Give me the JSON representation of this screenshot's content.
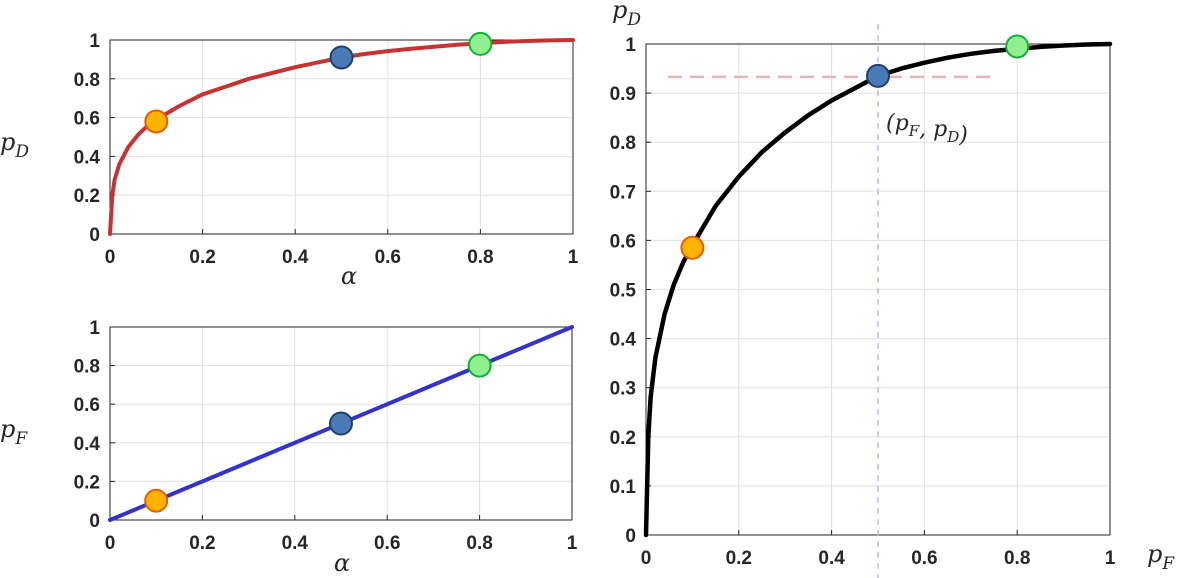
{
  "colors": {
    "red_curve": "#c83232",
    "blue_line": "#3333cc",
    "black_curve": "#000000",
    "orange_marker": "#ffb300",
    "orange_edge": "#e06000",
    "blue_marker": "#4a7ab8",
    "blue_edge": "#20406a",
    "green_marker": "#90f090",
    "green_edge": "#10b030",
    "grid": "#e0e0e0",
    "axis_box": "#262626",
    "hguide": "#e8b4b4",
    "vguide": "#a8c4e8"
  },
  "chart_data": [
    {
      "type": "line",
      "xlabel": "α",
      "ylabel": "p_D",
      "xlim": [
        0,
        1
      ],
      "ylim": [
        0,
        1
      ],
      "grid": true,
      "xticks": [
        "0",
        "0.2",
        "0.4",
        "0.6",
        "0.8",
        "1"
      ],
      "yticks": [
        "0",
        "0.2",
        "0.4",
        "0.6",
        "0.8",
        "1"
      ],
      "series": [
        {
          "x": [
            0,
            0.005,
            0.01,
            0.02,
            0.04,
            0.06,
            0.08,
            0.1,
            0.15,
            0.2,
            0.25,
            0.3,
            0.35,
            0.4,
            0.45,
            0.5,
            0.55,
            0.6,
            0.65,
            0.7,
            0.75,
            0.8,
            0.85,
            0.9,
            0.95,
            1
          ],
          "y": [
            0,
            0.2,
            0.28,
            0.36,
            0.45,
            0.51,
            0.555,
            0.59,
            0.66,
            0.72,
            0.76,
            0.8,
            0.83,
            0.86,
            0.885,
            0.91,
            0.928,
            0.943,
            0.955,
            0.965,
            0.975,
            0.983,
            0.99,
            0.995,
            0.998,
            1
          ]
        }
      ],
      "points": [
        {
          "x": 0.1,
          "y": 0.58
        },
        {
          "x": 0.5,
          "y": 0.91
        },
        {
          "x": 0.8,
          "y": 0.98
        }
      ]
    },
    {
      "type": "line",
      "xlabel": "α",
      "ylabel": "p_F",
      "xlim": [
        0,
        1
      ],
      "ylim": [
        0,
        1
      ],
      "grid": true,
      "xticks": [
        "0",
        "0.2",
        "0.4",
        "0.6",
        "0.8",
        "1"
      ],
      "yticks": [
        "0",
        "0.2",
        "0.4",
        "0.6",
        "0.8",
        "1"
      ],
      "series": [
        {
          "x": [
            0,
            1
          ],
          "y": [
            0,
            1
          ]
        }
      ],
      "points": [
        {
          "x": 0.1,
          "y": 0.1
        },
        {
          "x": 0.5,
          "y": 0.5
        },
        {
          "x": 0.8,
          "y": 0.8
        }
      ]
    },
    {
      "type": "line",
      "xlabel": "p_F",
      "ylabel": "p_D",
      "xlim": [
        0,
        1
      ],
      "ylim": [
        0,
        1
      ],
      "grid": true,
      "xticks": [
        "0",
        "0.2",
        "0.4",
        "0.6",
        "0.8",
        "1"
      ],
      "yticks": [
        "0",
        "0.1",
        "0.2",
        "0.3",
        "0.4",
        "0.5",
        "0.6",
        "0.7",
        "0.8",
        "0.9",
        "1"
      ],
      "series": [
        {
          "x": [
            0,
            0.005,
            0.01,
            0.02,
            0.04,
            0.06,
            0.08,
            0.1,
            0.15,
            0.2,
            0.25,
            0.3,
            0.35,
            0.4,
            0.45,
            0.5,
            0.55,
            0.6,
            0.65,
            0.7,
            0.75,
            0.8,
            0.85,
            0.9,
            0.95,
            1
          ],
          "y": [
            0,
            0.2,
            0.28,
            0.36,
            0.45,
            0.51,
            0.555,
            0.59,
            0.67,
            0.73,
            0.78,
            0.82,
            0.855,
            0.885,
            0.91,
            0.935,
            0.95,
            0.962,
            0.972,
            0.98,
            0.986,
            0.99,
            0.994,
            0.997,
            0.999,
            1
          ]
        }
      ],
      "points": [
        {
          "x": 0.1,
          "y": 0.585
        },
        {
          "x": 0.5,
          "y": 0.935
        },
        {
          "x": 0.8,
          "y": 0.995
        }
      ],
      "guides": {
        "x": 0.5,
        "y": 0.935
      },
      "annotation": "(p_F, p_D)"
    }
  ]
}
